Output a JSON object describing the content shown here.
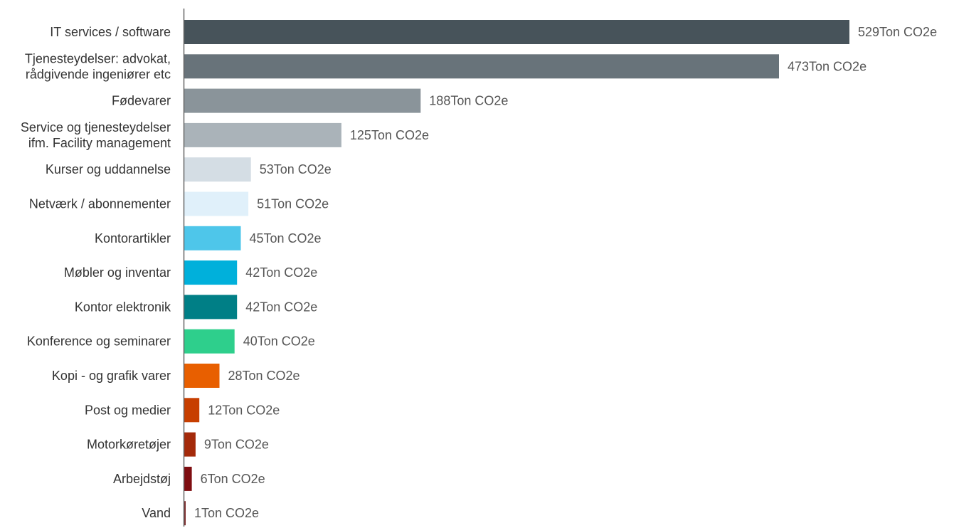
{
  "chart_data": {
    "type": "bar",
    "orientation": "horizontal",
    "categories": [
      [
        "IT services / software"
      ],
      [
        "Tjenesteydelser: advokat,",
        "rådgivende ingeniører etc"
      ],
      [
        "Fødevarer"
      ],
      [
        "Service og tjenesteydelser",
        "ifm. Facility management"
      ],
      [
        "Kurser og uddannelse"
      ],
      [
        "Netværk / abonnementer"
      ],
      [
        "Kontorartikler"
      ],
      [
        "Møbler og inventar"
      ],
      [
        "Kontor elektronik"
      ],
      [
        "Konference og seminarer"
      ],
      [
        "Kopi - og grafik varer"
      ],
      [
        "Post og medier"
      ],
      [
        "Motorkøretøjer"
      ],
      [
        "Arbejdstøj"
      ],
      [
        "Vand"
      ]
    ],
    "values": [
      529,
      473,
      188,
      125,
      53,
      51,
      45,
      42,
      42,
      40,
      28,
      12,
      9,
      6,
      1
    ],
    "value_labels": [
      "529Ton CO2e",
      "473Ton CO2e",
      "188Ton CO2e",
      "125Ton CO2e",
      "53Ton CO2e",
      "51Ton CO2e",
      "45Ton CO2e",
      "42Ton CO2e",
      "42Ton CO2e",
      "40Ton CO2e",
      "28Ton CO2e",
      "12Ton CO2e",
      "9Ton CO2e",
      "6Ton CO2e",
      "1Ton CO2e"
    ],
    "colors": [
      "#47535a",
      "#68737a",
      "#8a949a",
      "#aab3b9",
      "#d4dde4",
      "#e0f0fa",
      "#4ec6ea",
      "#00b0db",
      "#007f86",
      "#2ecf8c",
      "#e85f00",
      "#c73e00",
      "#a42a0a",
      "#7e0d10",
      "#7d2a2a"
    ],
    "xlim": [
      0,
      529
    ],
    "grid": false,
    "legend": "none"
  }
}
